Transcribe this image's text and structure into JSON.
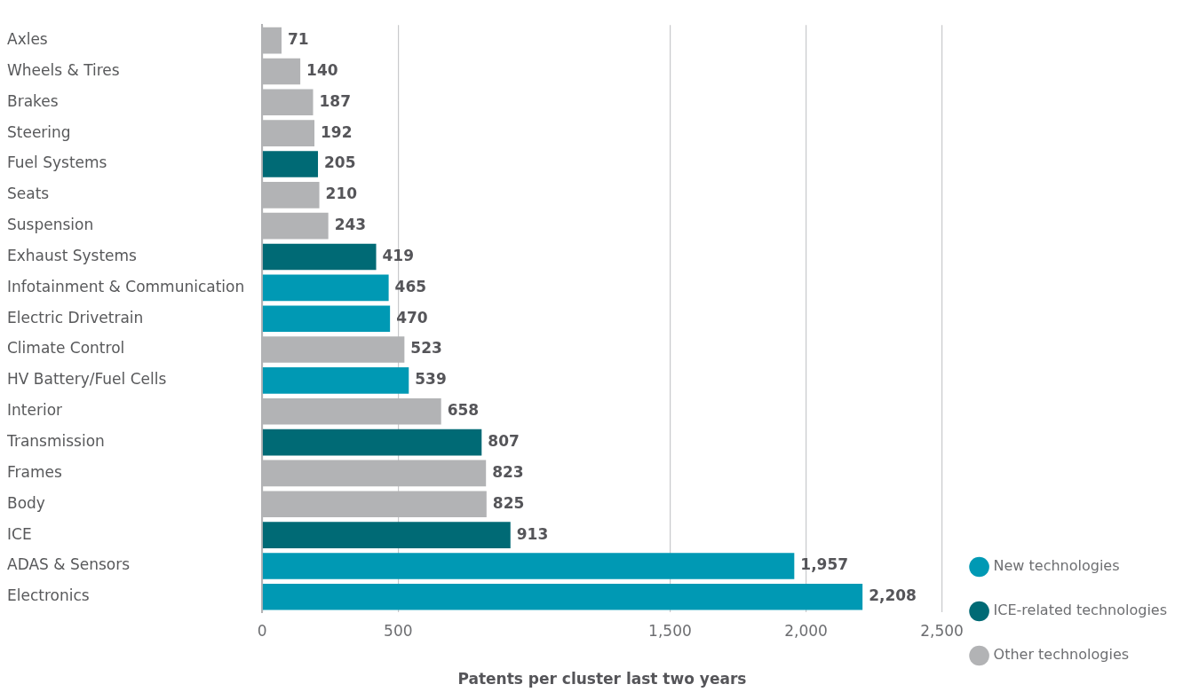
{
  "chart_data": {
    "type": "bar",
    "orientation": "horizontal",
    "xlabel": "Patents per cluster last two years",
    "categories": [
      "Axles",
      "Wheels & Tires",
      "Brakes",
      "Steering",
      "Fuel Systems",
      "Seats",
      "Suspension",
      "Exhaust Systems",
      "Infotainment & Communication",
      "Electric Drivetrain",
      "Climate Control",
      "HV Battery/Fuel Cells",
      "Interior",
      "Transmission",
      "Frames",
      "Body",
      "ICE",
      "ADAS & Sensors",
      "Electronics"
    ],
    "series": [
      {
        "name": "New technologies",
        "color": "#0099b4",
        "values": [
          null,
          null,
          null,
          null,
          null,
          null,
          null,
          null,
          465,
          470,
          null,
          539,
          null,
          null,
          null,
          null,
          null,
          1957,
          2208
        ],
        "value_labels": [
          null,
          null,
          null,
          null,
          null,
          null,
          null,
          null,
          "465",
          "470",
          null,
          "539",
          null,
          null,
          null,
          null,
          null,
          "1,957",
          "2,208"
        ]
      },
      {
        "name": "ICE-related technologies",
        "color": "#006a75",
        "values": [
          null,
          null,
          null,
          null,
          205,
          null,
          null,
          419,
          null,
          null,
          null,
          null,
          null,
          807,
          null,
          null,
          913,
          null,
          null
        ],
        "value_labels": [
          null,
          null,
          null,
          null,
          "205",
          null,
          null,
          "419",
          null,
          null,
          null,
          null,
          null,
          "807",
          null,
          null,
          "913",
          null,
          null
        ]
      },
      {
        "name": "Other technologies",
        "color": "#b2b3b5",
        "values": [
          71,
          140,
          187,
          192,
          null,
          210,
          243,
          null,
          null,
          null,
          523,
          null,
          658,
          null,
          823,
          825,
          null,
          null,
          null
        ],
        "value_labels": [
          "71",
          "140",
          "187",
          "192",
          null,
          "210",
          "243",
          null,
          null,
          null,
          "523",
          null,
          "658",
          null,
          "823",
          "825",
          null,
          null,
          null
        ]
      }
    ],
    "xlim": [
      0,
      2500
    ],
    "xticks": [
      0,
      500,
      {
        "value": 1500,
        "label": "1,500"
      },
      {
        "value": 2000,
        "label": "2,000"
      },
      {
        "value": 2500,
        "label": "2,500"
      }
    ],
    "grid": "x",
    "legend": "bottom right"
  }
}
